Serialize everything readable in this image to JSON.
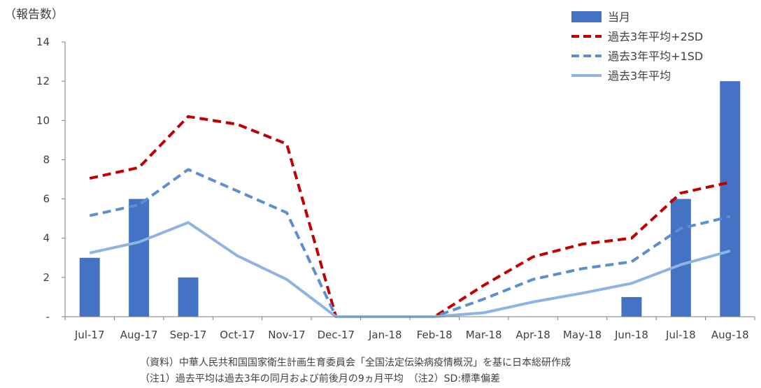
{
  "chart_data": {
    "type": "bar",
    "ylabel": "（報告数）",
    "ylim": [
      0,
      14
    ],
    "yticks": [
      0,
      2,
      4,
      6,
      8,
      10,
      12,
      14
    ],
    "yticklabels": [
      "-",
      "2",
      "4",
      "6",
      "8",
      "10",
      "12",
      "14"
    ],
    "categories": [
      "Jul-17",
      "Aug-17",
      "Sep-17",
      "Oct-17",
      "Nov-17",
      "Dec-17",
      "Jan-18",
      "Feb-18",
      "Mar-18",
      "Apr-18",
      "May-18",
      "Jun-18",
      "Jul-18",
      "Aug-18"
    ],
    "series": [
      {
        "name": "当月",
        "kind": "bar",
        "color": "#4472C4",
        "values": [
          3,
          6,
          2,
          0,
          0,
          0,
          0,
          0,
          0,
          0,
          0,
          1,
          6,
          12
        ]
      },
      {
        "name": "過去3年平均+2SD",
        "kind": "line",
        "style": "dashed",
        "color": "#C00000",
        "values": [
          7.05,
          7.6,
          10.2,
          9.8,
          8.8,
          0,
          0,
          0,
          1.6,
          3.05,
          3.7,
          4.0,
          6.3,
          6.85
        ]
      },
      {
        "name": "過去3年平均+1SD",
        "kind": "line",
        "style": "dashed",
        "color": "#5B8FD0",
        "values": [
          5.15,
          5.7,
          7.5,
          6.4,
          5.3,
          0,
          0,
          0,
          0.9,
          1.9,
          2.45,
          2.8,
          4.5,
          5.1
        ]
      },
      {
        "name": "過去3年平均",
        "kind": "line",
        "style": "solid",
        "color": "#8EB4E3",
        "values": [
          3.25,
          3.8,
          4.8,
          3.1,
          1.9,
          0,
          0,
          0,
          0.2,
          0.75,
          1.2,
          1.7,
          2.65,
          3.35
        ]
      }
    ],
    "legend_position": "top-right"
  },
  "notes": {
    "source": "（資料）中華人民共和国国家衛生計画生育委員会「全国法定伝染病疫情概況」を基に日本総研作成",
    "note": "（注1）過去平均は過去3年の同月および前後月の9ヵ月平均　（注2）SD:標準偏差"
  }
}
